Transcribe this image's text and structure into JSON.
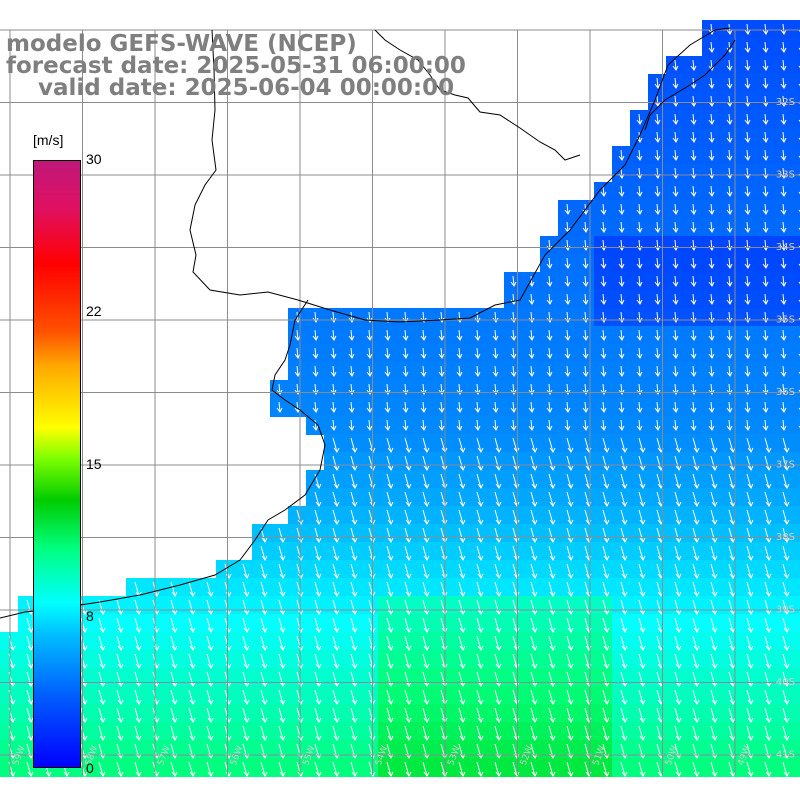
{
  "title": {
    "line1": "modelo GEFS-WAVE (NCEP)",
    "line2": "forecast date: 2025-05-31 06:00:00",
    "line3": "    valid date: 2025-06-04 00:00:00"
  },
  "colorbar": {
    "unit": "[m/s]",
    "ticks": [
      "30",
      "22",
      "15",
      "8",
      "0"
    ],
    "tick_values": [
      30,
      22,
      15,
      8,
      0
    ]
  },
  "lat_labels": [
    "32S",
    "33S",
    "34S",
    "35S",
    "36S",
    "37S",
    "38S",
    "39S",
    "40S",
    "41S"
  ],
  "lon_labels": [
    "59W",
    "58W",
    "57W",
    "56W",
    "55W",
    "54W",
    "53W",
    "52W",
    "51W",
    "50W",
    "49W"
  ],
  "colors": {
    "land": "#ffffff",
    "grid": "#8c8c8c",
    "coast": "#000000",
    "arrows": "#ffffff"
  }
}
